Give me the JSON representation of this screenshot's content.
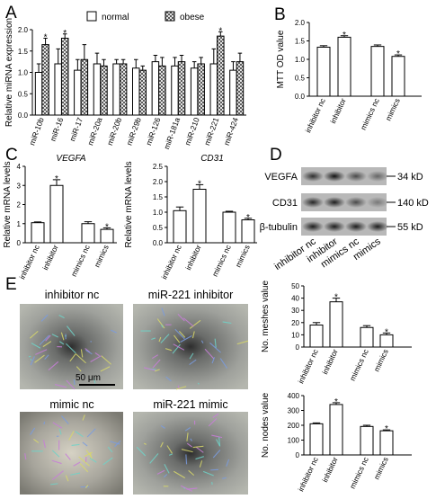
{
  "panels": {
    "A": "A",
    "B": "B",
    "C": "C",
    "D": "D",
    "E": "E"
  },
  "chart_data": [
    {
      "id": "A",
      "type": "bar",
      "ylabel": "Relative miRNA expression",
      "ylim": [
        0,
        2.0
      ],
      "yticks": [
        "0.0",
        "0.5",
        "1.0",
        "1.5",
        "2.0"
      ],
      "yticks_values": [
        0,
        0.5,
        1.0,
        1.5,
        2.0
      ],
      "legend_position": "top",
      "categories": [
        "miR-10b",
        "miR-16",
        "miR-17",
        "miR-20a",
        "miR-20b",
        "miR-29b",
        "miR-126",
        "miR-181a",
        "miR-210",
        "miR-221",
        "miR-424"
      ],
      "series": [
        {
          "name": "normal",
          "values": [
            1.0,
            1.2,
            1.05,
            1.2,
            1.2,
            1.1,
            1.25,
            1.15,
            1.1,
            1.2,
            1.05
          ],
          "errors": [
            0.2,
            0.35,
            0.25,
            0.25,
            0.1,
            0.2,
            0.15,
            0.2,
            0.15,
            0.35,
            0.2
          ]
        },
        {
          "name": "obese",
          "values": [
            1.65,
            1.8,
            1.3,
            1.15,
            1.2,
            1.05,
            1.15,
            1.25,
            1.2,
            1.85,
            1.25
          ],
          "errors": [
            0.15,
            0.1,
            0.35,
            0.15,
            0.1,
            0.1,
            0.2,
            0.15,
            0.15,
            0.1,
            0.2
          ]
        }
      ],
      "significant": [
        "miR-10b",
        "miR-16",
        "miR-221"
      ],
      "star": "*"
    },
    {
      "id": "B",
      "type": "bar",
      "ylabel": "MTT OD value",
      "ylim": [
        0,
        2.0
      ],
      "yticks": [
        "0.0",
        "0.5",
        "1.0",
        "1.5",
        "2.0"
      ],
      "yticks_values": [
        0,
        0.5,
        1.0,
        1.5,
        2.0
      ],
      "categories": [
        "inhibitor nc",
        "inhibitor",
        "mimics nc",
        "mimics"
      ],
      "values": [
        1.33,
        1.6,
        1.35,
        1.08
      ],
      "errors": [
        0.04,
        0.04,
        0.04,
        0.04
      ],
      "significant": [
        "inhibitor",
        "mimics"
      ],
      "star": "*"
    },
    {
      "id": "C1",
      "type": "bar",
      "title": "VEGFA",
      "ylabel": "Relative mRNA levels",
      "ylim": [
        0,
        4
      ],
      "yticks": [
        "0",
        "1",
        "2",
        "3",
        "4"
      ],
      "yticks_values": [
        0,
        1,
        2,
        3,
        4
      ],
      "categories": [
        "inhibitor nc",
        "inhibitor",
        "mimics nc",
        "mimics"
      ],
      "values": [
        1.05,
        3.0,
        1.0,
        0.7
      ],
      "errors": [
        0.04,
        0.3,
        0.1,
        0.08
      ],
      "significant": [
        "inhibitor",
        "mimics"
      ],
      "star": "*"
    },
    {
      "id": "C2",
      "type": "bar",
      "title": "CD31",
      "ylabel": "Relative mRNA levels",
      "ylim": [
        0,
        2.5
      ],
      "yticks": [
        "0.0",
        "0.5",
        "1.0",
        "1.5",
        "2.0",
        "2.5"
      ],
      "yticks_values": [
        0,
        0.5,
        1.0,
        1.5,
        2.0,
        2.5
      ],
      "categories": [
        "inhibitor nc",
        "inhibitor",
        "mimics nc",
        "mimics"
      ],
      "values": [
        1.05,
        1.75,
        1.0,
        0.75
      ],
      "errors": [
        0.12,
        0.15,
        0.03,
        0.05
      ],
      "significant": [
        "inhibitor",
        "mimics"
      ],
      "star": "*"
    },
    {
      "id": "E1",
      "type": "bar",
      "ylabel": "No. meshes value",
      "ylim": [
        0,
        50
      ],
      "yticks": [
        "0",
        "10",
        "20",
        "30",
        "40",
        "50"
      ],
      "yticks_values": [
        0,
        10,
        20,
        30,
        40,
        50
      ],
      "categories": [
        "inhibitor nc",
        "inhibitor",
        "mimics nc",
        "mimics"
      ],
      "values": [
        18,
        37,
        16,
        10
      ],
      "errors": [
        2,
        3,
        1.5,
        1.5
      ],
      "significant": [
        "inhibitor",
        "mimics"
      ],
      "star": "*"
    },
    {
      "id": "E2",
      "type": "bar",
      "ylabel": "No. nodes value",
      "ylim": [
        0,
        400
      ],
      "yticks": [
        "0",
        "100",
        "200",
        "300",
        "400"
      ],
      "yticks_values": [
        0,
        100,
        200,
        300,
        400
      ],
      "categories": [
        "inhibitor nc",
        "inhibitor",
        "mimics nc",
        "mimics"
      ],
      "values": [
        210,
        340,
        192,
        163
      ],
      "errors": [
        6,
        12,
        8,
        6
      ],
      "significant": [
        "inhibitor",
        "mimics"
      ],
      "star": "*"
    }
  ],
  "blot": {
    "rows": [
      {
        "label": "VEGFA",
        "kd": "34 kD"
      },
      {
        "label": "CD31",
        "kd": "140 kD"
      },
      {
        "label": "β-tubulin",
        "kd": "55 kD"
      }
    ],
    "lanes": [
      "inhibitor nc",
      "inhibitor",
      "mimics nc",
      "mimics"
    ],
    "intensities": [
      [
        0.75,
        0.9,
        0.6,
        0.45
      ],
      [
        0.8,
        0.85,
        0.6,
        0.35
      ],
      [
        0.85,
        0.85,
        0.85,
        0.85
      ]
    ]
  },
  "micrographs": {
    "labels": [
      "inhibitor nc",
      "miR-221 inhibitor",
      "mimic nc",
      "miR-221 mimic"
    ],
    "scale_bar": "50 μm"
  }
}
